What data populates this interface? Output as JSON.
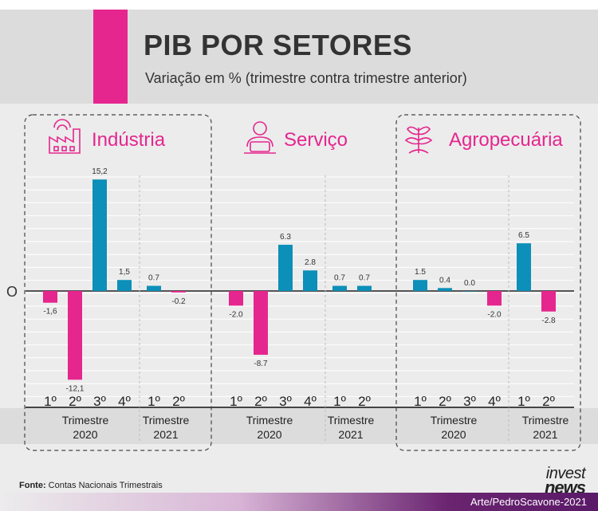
{
  "header": {
    "title": "PIB POR SETORES",
    "subtitle": "Variação em % (trimestre contra trimestre anterior)"
  },
  "colors": {
    "accent": "#e5268e",
    "blue": "#0c8fb8",
    "magenta": "#e5268e",
    "text": "#333333"
  },
  "zero_label": "O",
  "chart_data": {
    "type": "bar",
    "title": "PIB POR SETORES",
    "ylabel": "Variação em % (trimestre contra trimestre anterior)",
    "quarters": [
      "1º",
      "2º",
      "3º",
      "4º",
      "1º",
      "2º"
    ],
    "years": [
      "Trimestre 2020",
      "Trimestre 2021"
    ],
    "series": [
      {
        "name": "Indústria",
        "icon": "factory-icon",
        "values": [
          -1.6,
          -12.1,
          15.2,
          1.5,
          0.7,
          -0.2
        ],
        "labels": [
          "-1,6",
          "-12,1",
          "15,2",
          "1,5",
          "0.7",
          "-0.2"
        ]
      },
      {
        "name": "Serviço",
        "icon": "worker-icon",
        "values": [
          -2.0,
          -8.7,
          6.3,
          2.8,
          0.7,
          0.7
        ],
        "labels": [
          "-2.0",
          "-8.7",
          "6.3",
          "2.8",
          "0.7",
          "0.7"
        ]
      },
      {
        "name": "Agropecuária",
        "icon": "plant-icon",
        "values": [
          1.5,
          0.4,
          0.0,
          -2.0,
          6.5,
          -2.8
        ],
        "labels": [
          "1.5",
          "0.4",
          "0.0",
          "-2.0",
          "6.5",
          "-2.8"
        ]
      }
    ]
  },
  "footer": {
    "source_label": "Fonte:",
    "source_text": "Contas Nacionais Trimestrais",
    "logo_top": "invest",
    "logo_bottom": "news",
    "credit": "Arte/PedroScavone-2021"
  }
}
